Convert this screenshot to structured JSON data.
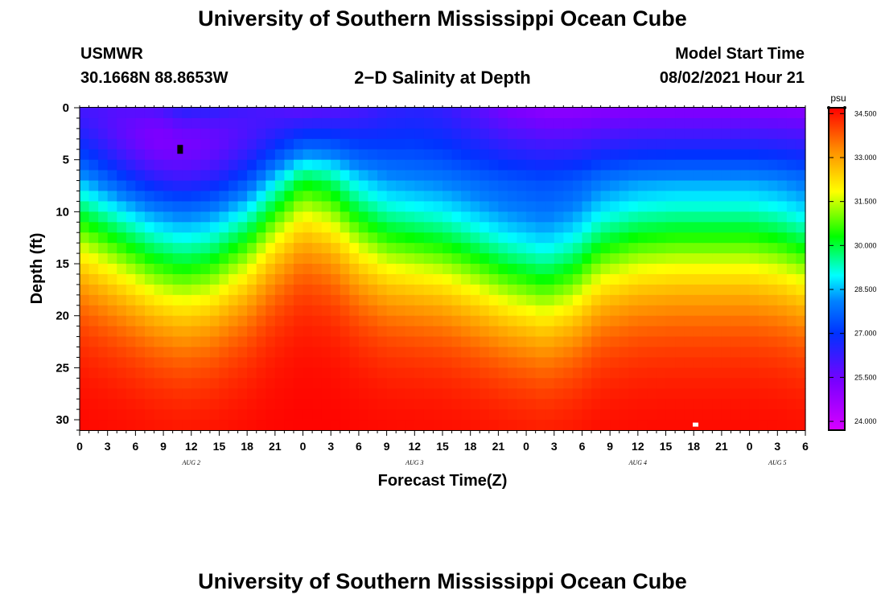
{
  "header": {
    "title": "University of Southern Mississippi Ocean Cube",
    "station": "USMWR",
    "coordinates": "30.1668N  88.8653W",
    "subtitle": "2−D Salinity at Depth",
    "start_label": "Model Start Time",
    "start_value": "08/02/2021 Hour 21"
  },
  "footer": {
    "title": "University of Southern Mississippi Ocean Cube"
  },
  "chart_data": {
    "type": "heatmap",
    "title": "2−D Salinity at Depth",
    "xlabel": "Forecast Time(Z)",
    "ylabel": "Depth (ft)",
    "x_tick_labels": [
      "0",
      "3",
      "6",
      "9",
      "12",
      "15",
      "18",
      "21",
      "0",
      "3",
      "6",
      "9",
      "12",
      "15",
      "18",
      "21",
      "0",
      "3",
      "6",
      "9",
      "12",
      "15",
      "18",
      "21",
      "0",
      "3",
      "6"
    ],
    "x_hours_from_start": [
      0,
      3,
      6,
      9,
      12,
      15,
      18,
      21,
      24,
      27,
      30,
      33,
      36,
      39,
      42,
      45,
      48,
      51,
      54,
      57,
      60,
      63,
      66,
      69,
      72,
      75,
      78
    ],
    "date_labels": [
      {
        "label": "AUG  2",
        "hour": 12
      },
      {
        "label": "AUG  3",
        "hour": 36
      },
      {
        "label": "AUG  4",
        "hour": 60
      },
      {
        "label": "AUG  5",
        "hour": 75
      }
    ],
    "xlim": [
      0,
      78
    ],
    "ylim": [
      0,
      31
    ],
    "y_reversed": true,
    "y_ticks": [
      0,
      5,
      10,
      15,
      20,
      25,
      30
    ],
    "colorbar": {
      "unit": "psu",
      "ticks": [
        "34.500",
        "33.000",
        "31.500",
        "30.000",
        "28.500",
        "27.000",
        "25.500",
        "24.000"
      ],
      "range": [
        23.7,
        34.7
      ]
    },
    "contour_profile": {
      "hours": [
        0,
        4,
        8,
        11,
        14,
        18,
        21,
        24,
        27,
        30,
        33,
        36,
        39,
        42,
        46,
        50,
        53,
        56,
        60,
        64,
        68,
        72,
        75,
        78
      ],
      "offset_ft": [
        -1,
        1,
        3,
        3.8,
        3.3,
        1,
        -2,
        -4.5,
        -3.5,
        -1,
        0.5,
        1,
        1.5,
        2.5,
        4,
        5,
        4,
        1.8,
        0.8,
        0.5,
        0.5,
        0.5,
        1,
        2
      ],
      "surface_offset_ft": [
        1.5,
        0.5,
        -1,
        -2.5,
        -2,
        0,
        1.8,
        3.5,
        3.2,
        2.3,
        1.5,
        1.2,
        1.4,
        2,
        3,
        3.5,
        3.6,
        3.6,
        3.6,
        3.6,
        3.6,
        3.6,
        3.6,
        3.6
      ]
    },
    "markers": [
      {
        "type": "observation",
        "color": "#000000",
        "hour": 10.8,
        "depth_ft": 4
      },
      {
        "type": "observation",
        "color": "#ffffff",
        "hour": 66.2,
        "depth_ft": 30.7
      }
    ]
  },
  "colors": {
    "low": "#d700ff",
    "mid_blue": "#0032ff",
    "cyan": "#00ffff",
    "green": "#00ff00",
    "yellow": "#ffff00",
    "high": "#ff0000"
  }
}
